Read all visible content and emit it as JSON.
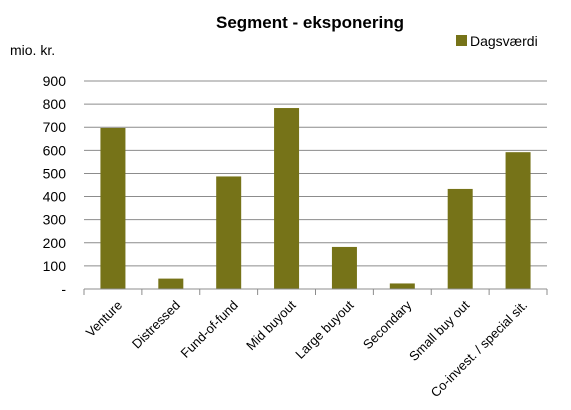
{
  "chart_data": {
    "type": "bar",
    "title": "Segment - eksponering",
    "ylabel": "mio. kr.",
    "xlabel": "",
    "categories": [
      "Venture",
      "Distressed",
      "Fund-of-fund",
      "Mid buyout",
      "Large buyout",
      "Secondary",
      "Small buy out",
      "Co-invest. / special sit."
    ],
    "series": [
      {
        "name": "Dagsværdi",
        "values": [
          697,
          45,
          487,
          783,
          182,
          24,
          433,
          592
        ]
      }
    ],
    "ylim": [
      0,
      900
    ],
    "yticks": [
      0,
      100,
      200,
      300,
      400,
      500,
      600,
      700,
      800,
      900
    ],
    "ytick_labels": [
      "-",
      "100",
      "200",
      "300",
      "400",
      "500",
      "600",
      "700",
      "800",
      "900"
    ],
    "grid": true,
    "legend": "top-right",
    "colors": {
      "bar": "#767318"
    }
  }
}
